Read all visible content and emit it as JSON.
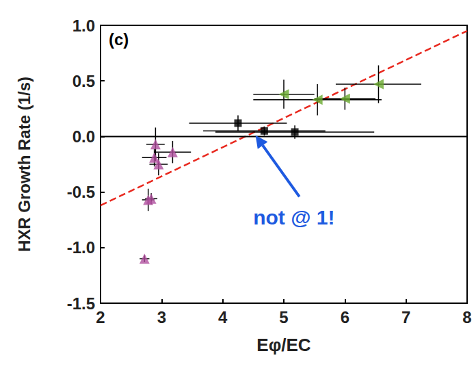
{
  "chart_data": {
    "type": "scatter",
    "panel_label": "(c)",
    "x_label": "Eφ/EC",
    "y_label": "HXR Growth Rate (1/s)",
    "xlim": [
      2,
      8
    ],
    "xticks": [
      2,
      3,
      4,
      5,
      6,
      7,
      8
    ],
    "ylim": [
      -1.5,
      1.0
    ],
    "yticks": [
      -1.5,
      {
        "value": -1.0,
        "label": "-1.0"
      },
      -0.5,
      {
        "value": 0.0,
        "label": "0.0"
      },
      0.5,
      {
        "value": 1.0,
        "label": "1.0"
      }
    ],
    "grid": false,
    "series": [
      {
        "type": "scatter",
        "marker": "triangle",
        "color": "#b0509f",
        "x": [
          2.9,
          2.88,
          2.95,
          3.18,
          2.78,
          2.83,
          2.72
        ],
        "values": [
          -0.07,
          -0.19,
          -0.25,
          -0.14,
          -0.57,
          -0.56,
          -1.1
        ],
        "x_err": [
          0.15,
          0.2,
          0.15,
          0.3,
          0.1,
          0.1,
          0.08
        ],
        "y_err": [
          0.15,
          0.08,
          0.1,
          0.1,
          0.1,
          0.05,
          0.03
        ]
      },
      {
        "type": "scatter",
        "marker": "square",
        "color": "#000000",
        "x": [
          4.25,
          4.68,
          5.18
        ],
        "values": [
          0.12,
          0.05,
          0.04
        ],
        "x_err": [
          0.8,
          1.0,
          1.3
        ],
        "y_err": [
          0.07,
          0.04,
          0.06
        ]
      },
      {
        "type": "scatter",
        "marker": "triangle-left",
        "color": "#6aaa30",
        "x": [
          5.0,
          5.55,
          6.0,
          6.55
        ],
        "values": [
          0.38,
          0.33,
          0.34,
          0.47
        ],
        "x_err": [
          0.5,
          1.05,
          0.5,
          0.7
        ],
        "y_err": [
          0.13,
          0.14,
          0.1,
          0.17
        ]
      },
      {
        "type": "line",
        "line_style": "dashed",
        "color": "#e8281e",
        "x": [
          2,
          8
        ],
        "values": [
          -0.62,
          0.95
        ]
      },
      {
        "type": "line",
        "line_style": "solid",
        "color": "#000000",
        "x": [
          2,
          8
        ],
        "values": [
          0.0,
          0.0
        ]
      }
    ],
    "annotation": {
      "text": "not @ 1!",
      "color": "#1e5ae0",
      "points_to": [
        4.55,
        0.0
      ]
    }
  }
}
